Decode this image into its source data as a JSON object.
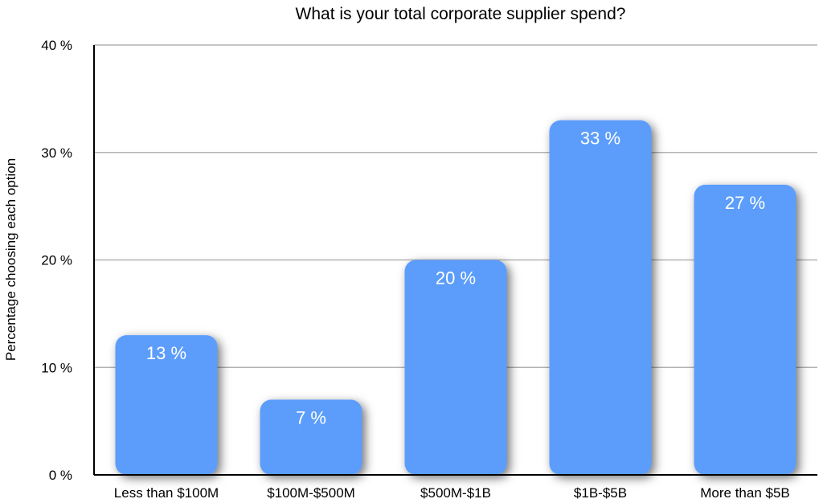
{
  "chart_data": {
    "type": "bar",
    "title": "What is your total corporate supplier spend?",
    "xlabel": "",
    "ylabel": "Percentage choosing each option",
    "categories": [
      "Less than $100M",
      "$100M-$500M",
      "$500M-$1B",
      "$1B-$5B",
      "More than $5B"
    ],
    "values": [
      13,
      7,
      20,
      33,
      27
    ],
    "data_labels": [
      "13 %",
      "7 %",
      "20 %",
      "33 %",
      "27 %"
    ],
    "ylim": [
      0,
      40
    ],
    "yticks": [
      0,
      10,
      20,
      30,
      40
    ],
    "ytick_labels": [
      "0 %",
      "10 %",
      "20 %",
      "30 %",
      "40 %"
    ],
    "grid": true,
    "legend": "none",
    "colors": {
      "bar": "#5b9dfb",
      "grid": "#b3b3b3",
      "axis": "#000000",
      "label": "#ffffff"
    }
  }
}
